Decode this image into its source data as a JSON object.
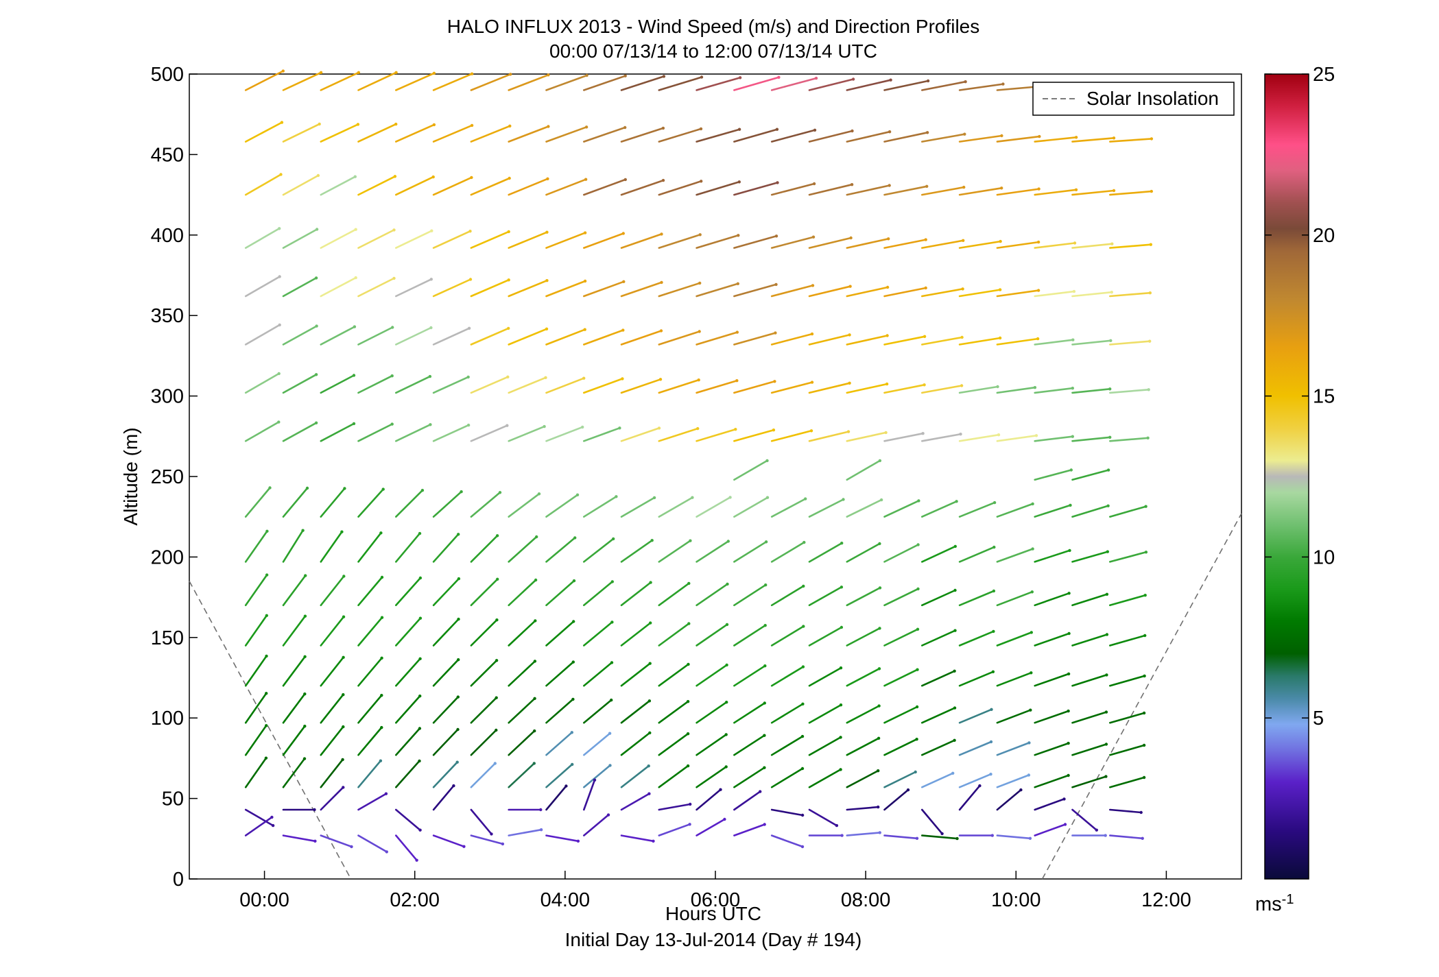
{
  "figure": {
    "title_line1": "HALO INFLUX 2013 - Wind Speed (m/s) and Direction Profiles",
    "title_line2": "00:00 07/13/14 to 12:00 07/13/14  UTC",
    "xlabel": "Hours UTC",
    "xlabel_sub": "Initial Day 13-Jul-2014 (Day # 194)",
    "ylabel": "Altitude (m)",
    "legend_label": "Solar Insolation",
    "colorbar_unit": "ms",
    "colorbar_unit_exp": "-1"
  },
  "chart_data": {
    "type": "scatter",
    "subtype": "wind-barb-profile",
    "title": "HALO INFLUX 2013 - Wind Speed (m/s) and Direction Profiles",
    "subtitle": "00:00 07/13/14 to 12:00 07/13/14  UTC",
    "xlabel": "Hours UTC",
    "ylabel": "Altitude (m)",
    "xlim": [
      -1,
      13
    ],
    "ylim": [
      0,
      500
    ],
    "x_ticks": [
      0,
      2,
      4,
      6,
      8,
      10,
      12
    ],
    "x_tick_labels": [
      "00:00",
      "02:00",
      "04:00",
      "06:00",
      "08:00",
      "10:00",
      "12:00"
    ],
    "y_ticks": [
      0,
      50,
      100,
      150,
      200,
      250,
      300,
      350,
      400,
      450,
      500
    ],
    "y_tick_labels": [
      "0",
      "50",
      "100",
      "150",
      "200",
      "250",
      "300",
      "350",
      "400",
      "450",
      "500"
    ],
    "colorbar": {
      "label": "ms-1",
      "range": [
        0,
        25
      ],
      "ticks": [
        5,
        10,
        15,
        20,
        25
      ],
      "tick_labels": [
        "5",
        "10",
        "15",
        "20",
        "25"
      ],
      "colormap": [
        [
          0,
          "#0a0a3a"
        ],
        [
          1.5,
          "#2a0a80"
        ],
        [
          3,
          "#5a20c8"
        ],
        [
          4,
          "#7070e0"
        ],
        [
          4.8,
          "#80a8f0"
        ],
        [
          5.6,
          "#4a8aa8"
        ],
        [
          6.3,
          "#2a7a6a"
        ],
        [
          7,
          "#006000"
        ],
        [
          8,
          "#007a00"
        ],
        [
          9,
          "#1a9a1a"
        ],
        [
          10,
          "#3aa83a"
        ],
        [
          11,
          "#70c070"
        ],
        [
          12,
          "#a8d8a0"
        ],
        [
          12.5,
          "#b8b8b8"
        ],
        [
          13,
          "#ecec90"
        ],
        [
          14,
          "#f0d040"
        ],
        [
          15,
          "#f0c000"
        ],
        [
          16.5,
          "#e8a010"
        ],
        [
          18,
          "#c08830"
        ],
        [
          19.5,
          "#a06838"
        ],
        [
          20.2,
          "#7a4a38"
        ],
        [
          21,
          "#a05050"
        ],
        [
          22,
          "#e06080"
        ],
        [
          22.8,
          "#ff5088"
        ],
        [
          24,
          "#d02040"
        ],
        [
          25,
          "#a00010"
        ]
      ]
    },
    "times": [
      -0.25,
      0.25,
      0.75,
      1.25,
      1.75,
      2.25,
      2.75,
      3.25,
      3.75,
      4.25,
      4.75,
      5.25,
      5.75,
      6.25,
      6.75,
      7.25,
      7.75,
      8.25,
      8.75,
      9.25,
      9.75,
      10.25,
      10.75,
      11.25
    ],
    "levels": [
      {
        "alt": 490,
        "speed": [
          16.5,
          16,
          16,
          16,
          16,
          16,
          17,
          17,
          18,
          19,
          20,
          20,
          21,
          22.5,
          22,
          21,
          20.5,
          20,
          19.5,
          19,
          18.5,
          18,
          17.5,
          17
        ],
        "dir": [
          243,
          245,
          245,
          245,
          246,
          247,
          248,
          249,
          250,
          251,
          252,
          253,
          254,
          254,
          255,
          256,
          257,
          258,
          259,
          262,
          265,
          266,
          267,
          268
        ]
      },
      {
        "alt": 458,
        "speed": [
          15,
          14,
          15,
          15.5,
          16,
          16,
          16,
          17,
          17.5,
          18.5,
          19,
          19,
          20,
          20,
          20,
          19.5,
          19,
          19,
          18,
          17,
          17,
          16,
          16,
          16
        ],
        "dir": [
          242,
          244,
          245,
          245,
          246,
          247,
          248,
          249,
          250,
          251,
          252,
          253,
          254,
          254,
          255,
          256,
          257,
          258,
          260,
          262,
          263,
          264,
          265,
          266
        ]
      },
      {
        "alt": 425,
        "speed": [
          14.5,
          13.5,
          12,
          15,
          15.5,
          16,
          16,
          16.5,
          17,
          19.5,
          19.5,
          19.5,
          20,
          20.5,
          19,
          19,
          18.5,
          18,
          17,
          17,
          16.5,
          16,
          16,
          16
        ]
      },
      {
        "alt": 392,
        "speed": [
          12,
          11.5,
          13,
          13.5,
          13,
          14,
          15,
          15.5,
          16,
          16.5,
          17,
          18,
          18.5,
          19,
          18,
          17.5,
          17,
          16.5,
          16,
          15.5,
          16,
          14,
          13.5,
          15
        ]
      },
      {
        "alt": 362,
        "speed": [
          12.5,
          10.5,
          13,
          13.5,
          12.5,
          14.5,
          15,
          15.5,
          16,
          17,
          17,
          17.5,
          18,
          18.5,
          17,
          16.5,
          16,
          16.5,
          15.5,
          15,
          16,
          13,
          13,
          14
        ]
      },
      {
        "alt": 332,
        "speed": [
          12.5,
          11,
          11,
          11,
          12,
          12.5,
          14.5,
          15,
          15.5,
          16,
          16.5,
          17,
          17,
          17.5,
          16,
          15.5,
          15.5,
          15,
          14.5,
          15,
          15,
          11.5,
          11.5,
          13.5
        ]
      },
      {
        "alt": 302,
        "speed": [
          11.5,
          10.5,
          10,
          10.5,
          10.5,
          11,
          13.5,
          13.5,
          14,
          15,
          15.5,
          16,
          16.5,
          16.5,
          16,
          15.5,
          15,
          14.5,
          14,
          11.5,
          11,
          11,
          10.5,
          12
        ]
      },
      {
        "alt": 272,
        "speed": [
          11,
          10.5,
          10,
          10.5,
          11,
          11.5,
          12.5,
          11.5,
          12,
          11,
          13.5,
          14.5,
          14.5,
          15,
          15,
          14,
          13.5,
          12.5,
          12.5,
          13,
          13,
          11,
          10.5,
          11
        ]
      },
      {
        "alt": 248,
        "cols": [
          13,
          16,
          21,
          22
        ],
        "speed": [
          11,
          11,
          10.5,
          10
        ],
        "dir": [
          240,
          240,
          255,
          255
        ]
      },
      {
        "alt": 225,
        "speed": [
          10.5,
          10,
          9.5,
          9.5,
          10,
          10,
          10.5,
          11,
          11,
          11,
          11,
          11.5,
          12,
          11.5,
          11,
          11,
          11.5,
          10.5,
          10.5,
          10.5,
          10.5,
          10,
          10,
          10
        ],
        "dir": [
          220,
          220,
          220,
          222,
          225,
          228,
          230,
          233,
          235,
          238,
          240,
          240,
          240,
          240,
          242,
          243,
          244,
          245,
          246,
          248,
          250,
          252,
          253,
          254
        ]
      },
      {
        "alt": 197,
        "speed": [
          10,
          9.5,
          9,
          9,
          9.5,
          9.5,
          9.5,
          10,
          10,
          10,
          10,
          10.5,
          10.5,
          10.5,
          10.5,
          10,
          10,
          10.5,
          9,
          10,
          10.5,
          9,
          9,
          10
        ],
        "dir": [
          215,
          212,
          215,
          218,
          220,
          222,
          225,
          228,
          230,
          232,
          235,
          236,
          237,
          238,
          239,
          240,
          241,
          243,
          245,
          247,
          250,
          252,
          254,
          255
        ]
      },
      {
        "alt": 170,
        "speed": [
          9.5,
          9.5,
          9.5,
          9,
          9,
          9,
          9.5,
          9.5,
          9.5,
          9.5,
          9.5,
          9.5,
          10,
          10,
          9.5,
          9.5,
          10,
          10,
          8.5,
          9.5,
          10,
          8.5,
          8.5,
          9
        ]
      },
      {
        "alt": 145,
        "speed": [
          9,
          9,
          9,
          9,
          9,
          8.5,
          8.5,
          8.5,
          8.5,
          9,
          9,
          9.5,
          9.5,
          9.5,
          9.5,
          9.5,
          9.5,
          9.5,
          8.5,
          9,
          9,
          8.5,
          8.5,
          8.5
        ]
      },
      {
        "alt": 120,
        "speed": [
          8.5,
          8.5,
          8.5,
          8.5,
          8.5,
          8,
          8,
          8,
          8,
          8.5,
          8.5,
          8.5,
          9,
          9,
          9,
          8.5,
          9,
          9,
          7.5,
          8.5,
          8.5,
          8,
          8,
          8
        ]
      },
      {
        "alt": 97,
        "speed": [
          8,
          8,
          8,
          8,
          8,
          7.5,
          7.5,
          7.5,
          7.5,
          7.5,
          7.5,
          8,
          8.5,
          8.5,
          8.5,
          8.5,
          8.5,
          8.5,
          8,
          6,
          7.5,
          7.5,
          7.5,
          7.5
        ]
      },
      {
        "alt": 77,
        "speed": [
          8,
          8,
          8,
          8,
          7.5,
          7,
          7,
          7,
          5.5,
          5,
          8,
          8,
          8,
          8,
          8,
          8,
          8,
          8,
          7.5,
          5.5,
          5.5,
          7.5,
          7.5,
          7.5
        ]
      },
      {
        "alt": 57,
        "speed": [
          7.5,
          7.5,
          7,
          6,
          7,
          6,
          5,
          6.5,
          6,
          5.5,
          6,
          8,
          8,
          8,
          8,
          8,
          7,
          6,
          5,
          5,
          5,
          7.5,
          7,
          7.5
        ]
      },
      {
        "alt": 43,
        "speed": [
          2,
          1.5,
          2,
          2.5,
          2,
          1.5,
          2,
          2.5,
          1,
          2,
          2.5,
          2,
          1.5,
          2,
          1.5,
          2,
          1.5,
          1,
          1.5,
          1.5,
          1,
          1.5,
          2,
          1.5
        ],
        "dir": [
          300,
          270,
          225,
          240,
          310,
          220,
          320,
          270,
          220,
          200,
          240,
          260,
          230,
          235,
          280,
          300,
          265,
          230,
          320,
          220,
          230,
          250,
          310,
          275
        ]
      },
      {
        "alt": 27,
        "speed": [
          2.5,
          3,
          3.5,
          3.5,
          3,
          3,
          3.5,
          4,
          3,
          2.5,
          3,
          3.5,
          3,
          3,
          3.5,
          3.5,
          4,
          3.5,
          7,
          3.5,
          4,
          3,
          4,
          3.5
        ],
        "dir": [
          235,
          280,
          290,
          300,
          320,
          290,
          285,
          260,
          280,
          230,
          280,
          250,
          240,
          250,
          290,
          270,
          265,
          275,
          275,
          270,
          275,
          250,
          270,
          275
        ]
      }
    ],
    "solar_insolation": {
      "type": "dashed-line",
      "segments": [
        {
          "points": [
            [
              -1,
              185
            ],
            [
              1.15,
              0
            ]
          ]
        },
        {
          "points": [
            [
              10.35,
              0
            ],
            [
              13,
              227
            ]
          ]
        }
      ]
    }
  }
}
